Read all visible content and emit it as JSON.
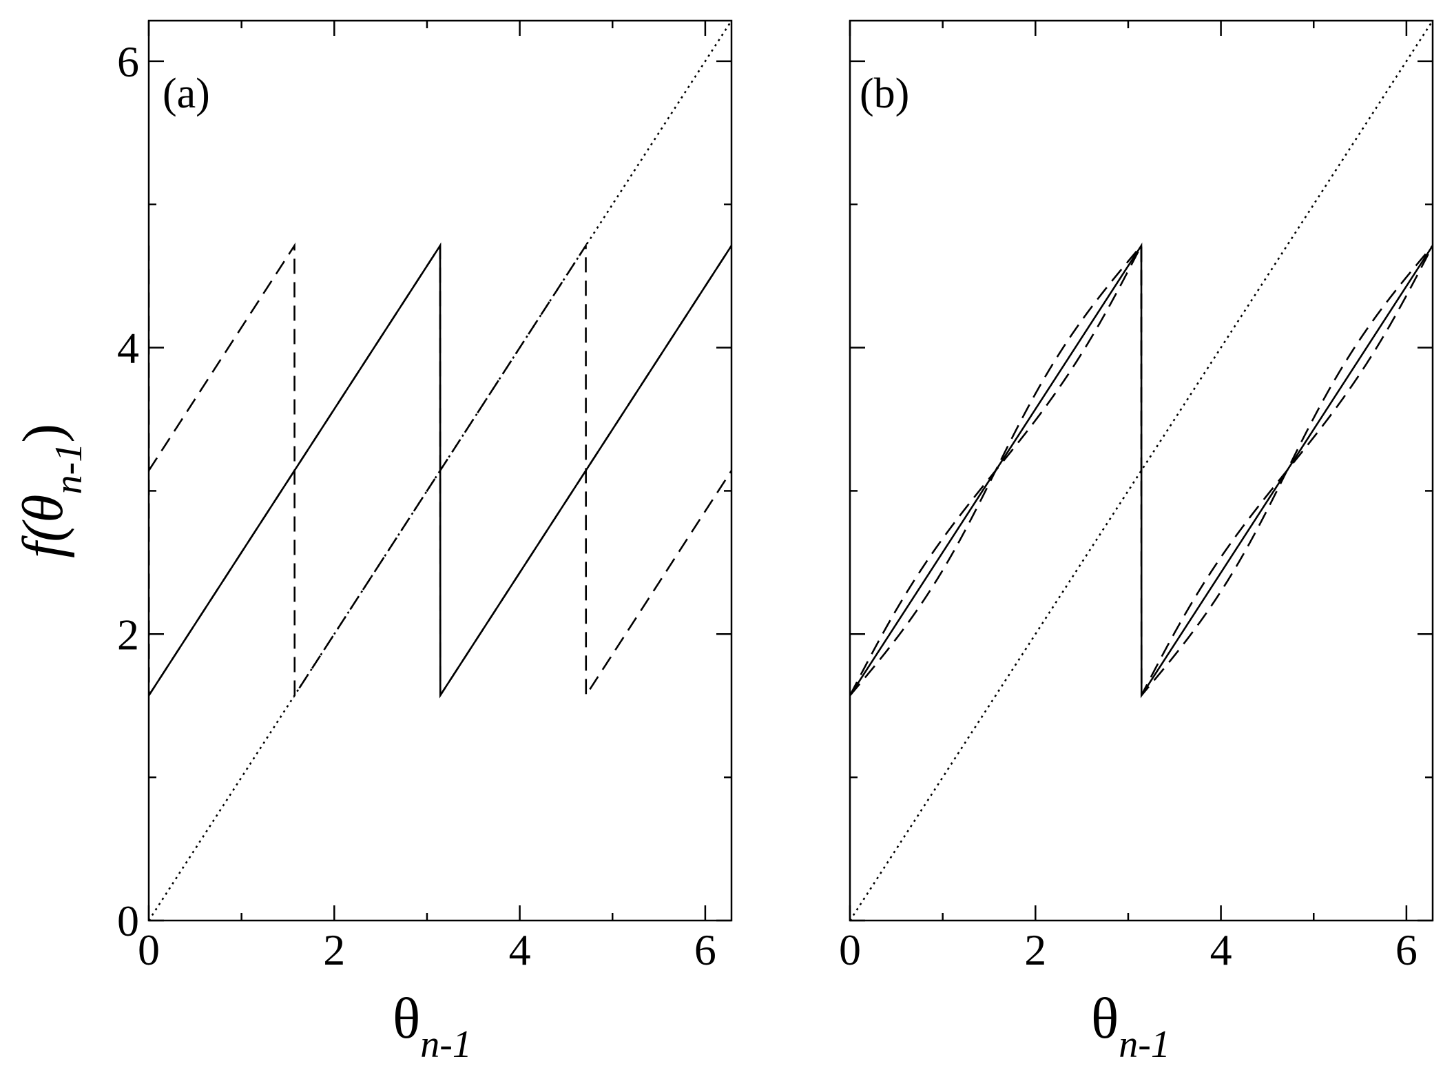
{
  "chart_data": [
    {
      "type": "line",
      "panel_label": "(a)",
      "xlabel": "θ",
      "xlabel_sub": "n-1",
      "ylabel": "f(θ",
      "ylabel_sub": "n-1",
      "ylabel_close": ")",
      "xlim": [
        0,
        6.283
      ],
      "ylim": [
        0,
        6.283
      ],
      "x_ticks": [
        0,
        2,
        4,
        6
      ],
      "y_ticks": [
        0,
        2,
        4,
        6
      ],
      "series": [
        {
          "style": "solid",
          "shift": 0,
          "k": 1.0
        },
        {
          "style": "dashed",
          "shift": 1.5708,
          "k": 1.0
        },
        {
          "style": "dashed",
          "shift": 3.1416,
          "k": 1.0
        },
        {
          "style": "dotted",
          "identity": true
        }
      ]
    },
    {
      "type": "line",
      "panel_label": "(b)",
      "xlabel": "θ",
      "xlabel_sub": "n-1",
      "xlim": [
        0,
        6.283
      ],
      "ylim": [
        0,
        6.283
      ],
      "x_ticks": [
        0,
        2,
        4,
        6
      ],
      "y_ticks": [
        0,
        2,
        4,
        6
      ],
      "series": [
        {
          "style": "solid",
          "shift": 0,
          "k": 1.0
        },
        {
          "style": "dashed",
          "shift": 0,
          "k": 1.3
        },
        {
          "style": "dashed",
          "shift": 0,
          "k": 0.8
        },
        {
          "style": "dotted",
          "identity": true
        }
      ]
    }
  ]
}
